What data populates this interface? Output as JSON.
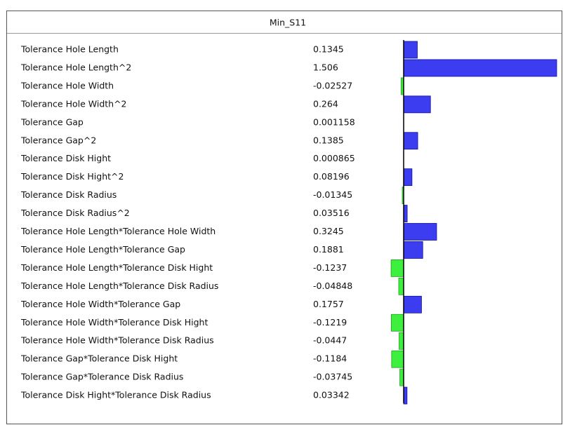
{
  "chart_data": {
    "type": "bar",
    "orientation": "horizontal",
    "title": "Min_S11",
    "categories": [
      "Tolerance Hole Length",
      "Tolerance Hole Length^2",
      "Tolerance Hole Width",
      "Tolerance Hole Width^2",
      "Tolerance Gap",
      "Tolerance Gap^2",
      "Tolerance Disk Hight",
      "Tolerance Disk Hight^2",
      "Tolerance Disk Radius",
      "Tolerance Disk Radius^2",
      "Tolerance Hole Length*Tolerance Hole Width",
      "Tolerance Hole Length*Tolerance Gap",
      "Tolerance Hole Length*Tolerance Disk Hight",
      "Tolerance Hole Length*Tolerance Disk Radius",
      "Tolerance Hole Width*Tolerance Gap",
      "Tolerance Hole Width*Tolerance Disk Hight",
      "Tolerance Hole Width*Tolerance Disk Radius",
      "Tolerance Gap*Tolerance Disk Hight",
      "Tolerance Gap*Tolerance Disk Radius",
      "Tolerance Disk Hight*Tolerance Disk Radius"
    ],
    "values": [
      0.1345,
      1.506,
      -0.02527,
      0.264,
      0.001158,
      0.1385,
      0.000865,
      0.08196,
      -0.01345,
      0.03516,
      0.3245,
      0.1881,
      -0.1237,
      -0.04848,
      0.1757,
      -0.1219,
      -0.0447,
      -0.1184,
      -0.03745,
      0.03342
    ],
    "positive_color": "#3c3cf0",
    "negative_color": "#3ef03e"
  }
}
